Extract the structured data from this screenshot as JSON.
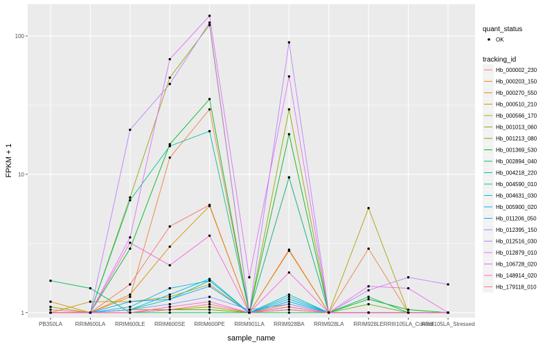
{
  "chart_data": {
    "type": "line",
    "xlabel": "sample_name",
    "ylabel": "FPKM + 1",
    "y_scale": "log10",
    "ylim": [
      0.92,
      170
    ],
    "y_ticks": [
      {
        "value": 1,
        "label": "1"
      },
      {
        "value": 10,
        "label": "10"
      },
      {
        "value": 100,
        "label": "100"
      }
    ],
    "categories": [
      "PB350LA",
      "RRIM600LA",
      "RRIM600LE",
      "RRIM600SE",
      "RRIM600PE",
      "RRIM901LA",
      "RRIM928BA",
      "RRIM928LA",
      "RRIM928LE",
      "RRIII105LA_Control",
      "RRIII105LA_Stressed"
    ],
    "category_labels": [
      "PB350LA",
      "RRIM600LA",
      "RRIM600LE",
      "RRIM600SE",
      "RRIM600PE",
      "RRIM901LA",
      "RRIM928BA",
      "RRIM928LA",
      "RRIM928LE",
      "RRIII105LA_Control",
      "RRIII105LA_Stressed"
    ],
    "shape_legend": {
      "title": "quant_status",
      "items": [
        "OK"
      ]
    },
    "color_legend_title": "tracking_id",
    "series": [
      {
        "name": "Hb_000002_230",
        "color": "#F8766D",
        "values": [
          1.05,
          1.0,
          1.6,
          4.2,
          6.0,
          1.0,
          2.85,
          1.0,
          1.0,
          1.0,
          1.0
        ]
      },
      {
        "name": "Hb_000203_150",
        "color": "#EC8239",
        "values": [
          1.0,
          1.0,
          1.3,
          13.2,
          29.5,
          1.0,
          9.5,
          1.0,
          2.9,
          1.0,
          1.0
        ]
      },
      {
        "name": "Hb_000270_550",
        "color": "#DB8E00",
        "values": [
          1.2,
          1.0,
          1.35,
          3.0,
          5.9,
          1.0,
          2.8,
          1.0,
          1.0,
          1.0,
          1.0
        ]
      },
      {
        "name": "Hb_000510_210",
        "color": "#C79800",
        "values": [
          1.0,
          1.2,
          1.2,
          1.3,
          1.6,
          1.0,
          1.15,
          1.0,
          1.0,
          1.0,
          1.0
        ]
      },
      {
        "name": "Hb_000566_170",
        "color": "#AEA200",
        "values": [
          1.0,
          1.0,
          1.05,
          1.05,
          1.1,
          1.0,
          1.1,
          1.0,
          5.7,
          1.0,
          1.0
        ]
      },
      {
        "name": "Hb_001013_060",
        "color": "#8FAA00",
        "values": [
          1.1,
          1.0,
          6.8,
          50.0,
          120.0,
          1.0,
          29.5,
          1.0,
          1.0,
          1.0,
          1.0
        ]
      },
      {
        "name": "Hb_001213_080",
        "color": "#64B200",
        "values": [
          1.0,
          1.0,
          1.0,
          1.05,
          1.05,
          1.0,
          1.05,
          1.0,
          1.15,
          1.0,
          1.0
        ]
      },
      {
        "name": "Hb_001369_530",
        "color": "#00B81B",
        "values": [
          1.0,
          1.0,
          2.9,
          16.5,
          35.0,
          1.0,
          19.5,
          1.0,
          1.25,
          1.05,
          1.0
        ]
      },
      {
        "name": "Hb_002894_040",
        "color": "#00BD5C",
        "values": [
          1.7,
          1.5,
          1.0,
          1.0,
          1.0,
          1.0,
          1.0,
          1.0,
          1.3,
          1.0,
          1.0
        ]
      },
      {
        "name": "Hb_004218_220",
        "color": "#00C08E",
        "values": [
          1.0,
          1.0,
          6.5,
          16.0,
          20.5,
          1.0,
          9.5,
          1.0,
          1.0,
          1.0,
          1.0
        ]
      },
      {
        "name": "Hb_004590_010",
        "color": "#00C1B2",
        "values": [
          1.0,
          1.0,
          1.05,
          1.25,
          1.7,
          1.0,
          1.35,
          1.0,
          1.0,
          1.0,
          1.0
        ]
      },
      {
        "name": "Hb_004631_030",
        "color": "#00BDD1",
        "values": [
          1.0,
          1.0,
          1.05,
          1.35,
          1.75,
          1.0,
          1.3,
          1.0,
          1.0,
          1.0,
          1.0
        ]
      },
      {
        "name": "Hb_005900_020",
        "color": "#00B5EE",
        "values": [
          1.0,
          1.0,
          1.1,
          1.5,
          1.7,
          1.0,
          1.25,
          1.0,
          1.0,
          1.0,
          1.0
        ]
      },
      {
        "name": "Hb_011206_050",
        "color": "#00A7FF",
        "values": [
          1.0,
          1.0,
          1.2,
          1.25,
          1.55,
          1.0,
          1.2,
          1.0,
          1.0,
          1.0,
          1.0
        ]
      },
      {
        "name": "Hb_012395_150",
        "color": "#7F96FF",
        "values": [
          1.0,
          1.0,
          1.05,
          1.15,
          1.3,
          1.05,
          1.15,
          1.0,
          1.0,
          1.0,
          1.0
        ]
      },
      {
        "name": "Hb_012516_030",
        "color": "#BC81FF",
        "values": [
          1.0,
          1.0,
          21.0,
          45.0,
          125.0,
          1.0,
          90.0,
          1.0,
          1.45,
          1.8,
          1.6
        ]
      },
      {
        "name": "Hb_012879_010",
        "color": "#E26EF7",
        "values": [
          1.0,
          1.0,
          3.5,
          68.0,
          140.0,
          1.8,
          51.0,
          1.0,
          1.55,
          1.5,
          1.0
        ]
      },
      {
        "name": "Hb_106728_020",
        "color": "#F863DF",
        "values": [
          1.0,
          1.0,
          3.2,
          2.2,
          3.6,
          1.0,
          1.95,
          1.0,
          1.0,
          1.0,
          1.0
        ]
      },
      {
        "name": "Hb_148914_020",
        "color": "#FF62BF",
        "values": [
          1.0,
          1.0,
          1.0,
          1.1,
          1.2,
          1.0,
          1.1,
          1.0,
          1.0,
          1.0,
          1.0
        ]
      },
      {
        "name": "Hb_179118_010",
        "color": "#FF6A98",
        "values": [
          1.0,
          1.0,
          1.0,
          1.05,
          1.15,
          1.0,
          1.05,
          1.0,
          1.0,
          1.0,
          1.0
        ]
      }
    ],
    "grid": true,
    "panel_background": "#EBEBEB",
    "gridline_color": "#FFFFFF",
    "point_color": "#000000",
    "legend_position": "right"
  }
}
